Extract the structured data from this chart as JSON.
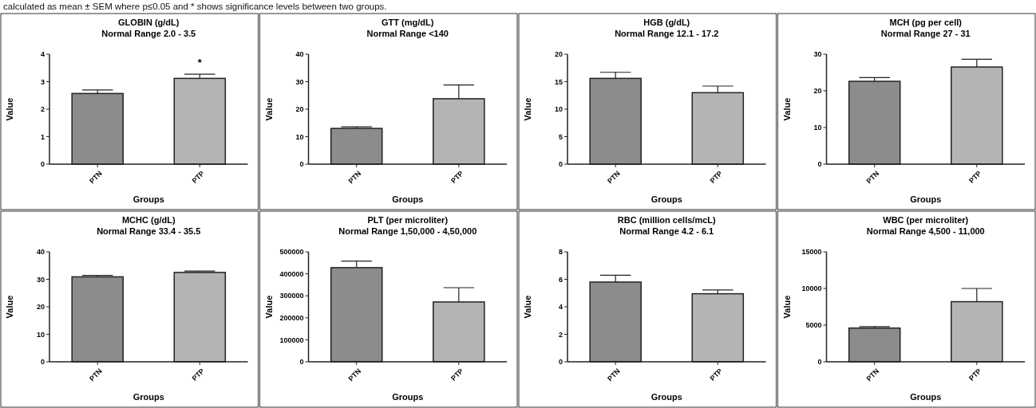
{
  "chart_data": [
    {
      "type": "bar",
      "title": "GLOBIN (g/dL)",
      "subtitle": "Normal Range 2.0 - 3.5",
      "xlabel": "Groups",
      "ylabel": "Value",
      "categories": [
        "PTN",
        "PTP"
      ],
      "values": [
        2.57,
        3.12
      ],
      "errors": [
        0.13,
        0.15
      ],
      "colors": [
        "#8c8c8c",
        "#b4b4b4"
      ],
      "ylim": [
        0,
        4
      ],
      "yticks": [
        0,
        1,
        2,
        3,
        4
      ],
      "grid": false,
      "annotations": [
        "calculated as mean ± SEM where p≤0.05 and * shows significance levels between two groups.",
        "*"
      ]
    },
    {
      "type": "bar",
      "title": "GTT (mg/dL)",
      "subtitle": "Normal Range <140",
      "xlabel": "Groups",
      "ylabel": "Value",
      "categories": [
        "PTN",
        "PTP"
      ],
      "values": [
        13,
        23.8
      ],
      "errors": [
        0.6,
        5
      ],
      "colors": [
        "#8c8c8c",
        "#b4b4b4"
      ],
      "ylim": [
        0,
        40
      ],
      "yticks": [
        0,
        10,
        20,
        30,
        40
      ],
      "grid": false
    },
    {
      "type": "bar",
      "title": "HGB (g/dL)",
      "subtitle": "Normal Range 12.1 - 17.2",
      "xlabel": "Groups",
      "ylabel": "Value",
      "categories": [
        "PTN",
        "PTP"
      ],
      "values": [
        15.6,
        13
      ],
      "errors": [
        1.1,
        1.2
      ],
      "colors": [
        "#8c8c8c",
        "#b4b4b4"
      ],
      "ylim": [
        0,
        20
      ],
      "yticks": [
        0,
        5,
        10,
        15,
        20
      ],
      "grid": false
    },
    {
      "type": "bar",
      "title": "MCH (pg per cell)",
      "subtitle": "Normal Range 27 - 31",
      "xlabel": "Groups",
      "ylabel": "Value",
      "categories": [
        "PTN",
        "PTP"
      ],
      "values": [
        22.6,
        26.5
      ],
      "errors": [
        1,
        2.1
      ],
      "colors": [
        "#8c8c8c",
        "#b4b4b4"
      ],
      "ylim": [
        0,
        30
      ],
      "yticks": [
        0,
        10,
        20,
        30
      ],
      "grid": false
    },
    {
      "type": "bar",
      "title": "MCHC (g/dL)",
      "subtitle": "Normal Range 33.4 - 35.5",
      "xlabel": "Groups",
      "ylabel": "Value",
      "categories": [
        "PTN",
        "PTP"
      ],
      "values": [
        30.9,
        32.5
      ],
      "errors": [
        0.5,
        0.5
      ],
      "colors": [
        "#8c8c8c",
        "#b4b4b4"
      ],
      "ylim": [
        0,
        40
      ],
      "yticks": [
        0,
        10,
        20,
        30,
        40
      ],
      "grid": false
    },
    {
      "type": "bar",
      "title": "PLT (per microliter)",
      "subtitle": "Normal Range 1,50,000 - 4,50,000",
      "xlabel": "Groups",
      "ylabel": "Value",
      "categories": [
        "PTN",
        "PTP"
      ],
      "values": [
        428000,
        272000
      ],
      "errors": [
        30000,
        65000
      ],
      "colors": [
        "#8c8c8c",
        "#b4b4b4"
      ],
      "ylim": [
        0,
        500000
      ],
      "yticks": [
        0,
        100000,
        200000,
        300000,
        400000,
        500000
      ],
      "grid": false
    },
    {
      "type": "bar",
      "title": "RBC (million cells/mcL)",
      "subtitle": "Normal Range 4.2 - 6.1",
      "xlabel": "Groups",
      "ylabel": "Value",
      "categories": [
        "PTN",
        "PTP"
      ],
      "values": [
        5.8,
        4.95
      ],
      "errors": [
        0.5,
        0.27
      ],
      "colors": [
        "#8c8c8c",
        "#b4b4b4"
      ],
      "ylim": [
        0,
        8
      ],
      "yticks": [
        0,
        2,
        4,
        6,
        8
      ],
      "grid": false
    },
    {
      "type": "bar",
      "title": "WBC (per microliter)",
      "subtitle": "Normal Range 4,500 - 11,000",
      "xlabel": "Groups",
      "ylabel": "Value",
      "categories": [
        "PTN",
        "PTP"
      ],
      "values": [
        4600,
        8200
      ],
      "errors": [
        200,
        1800
      ],
      "colors": [
        "#8c8c8c",
        "#b4b4b4"
      ],
      "ylim": [
        0,
        15000
      ],
      "yticks": [
        0,
        5000,
        10000,
        15000
      ],
      "grid": false
    }
  ]
}
